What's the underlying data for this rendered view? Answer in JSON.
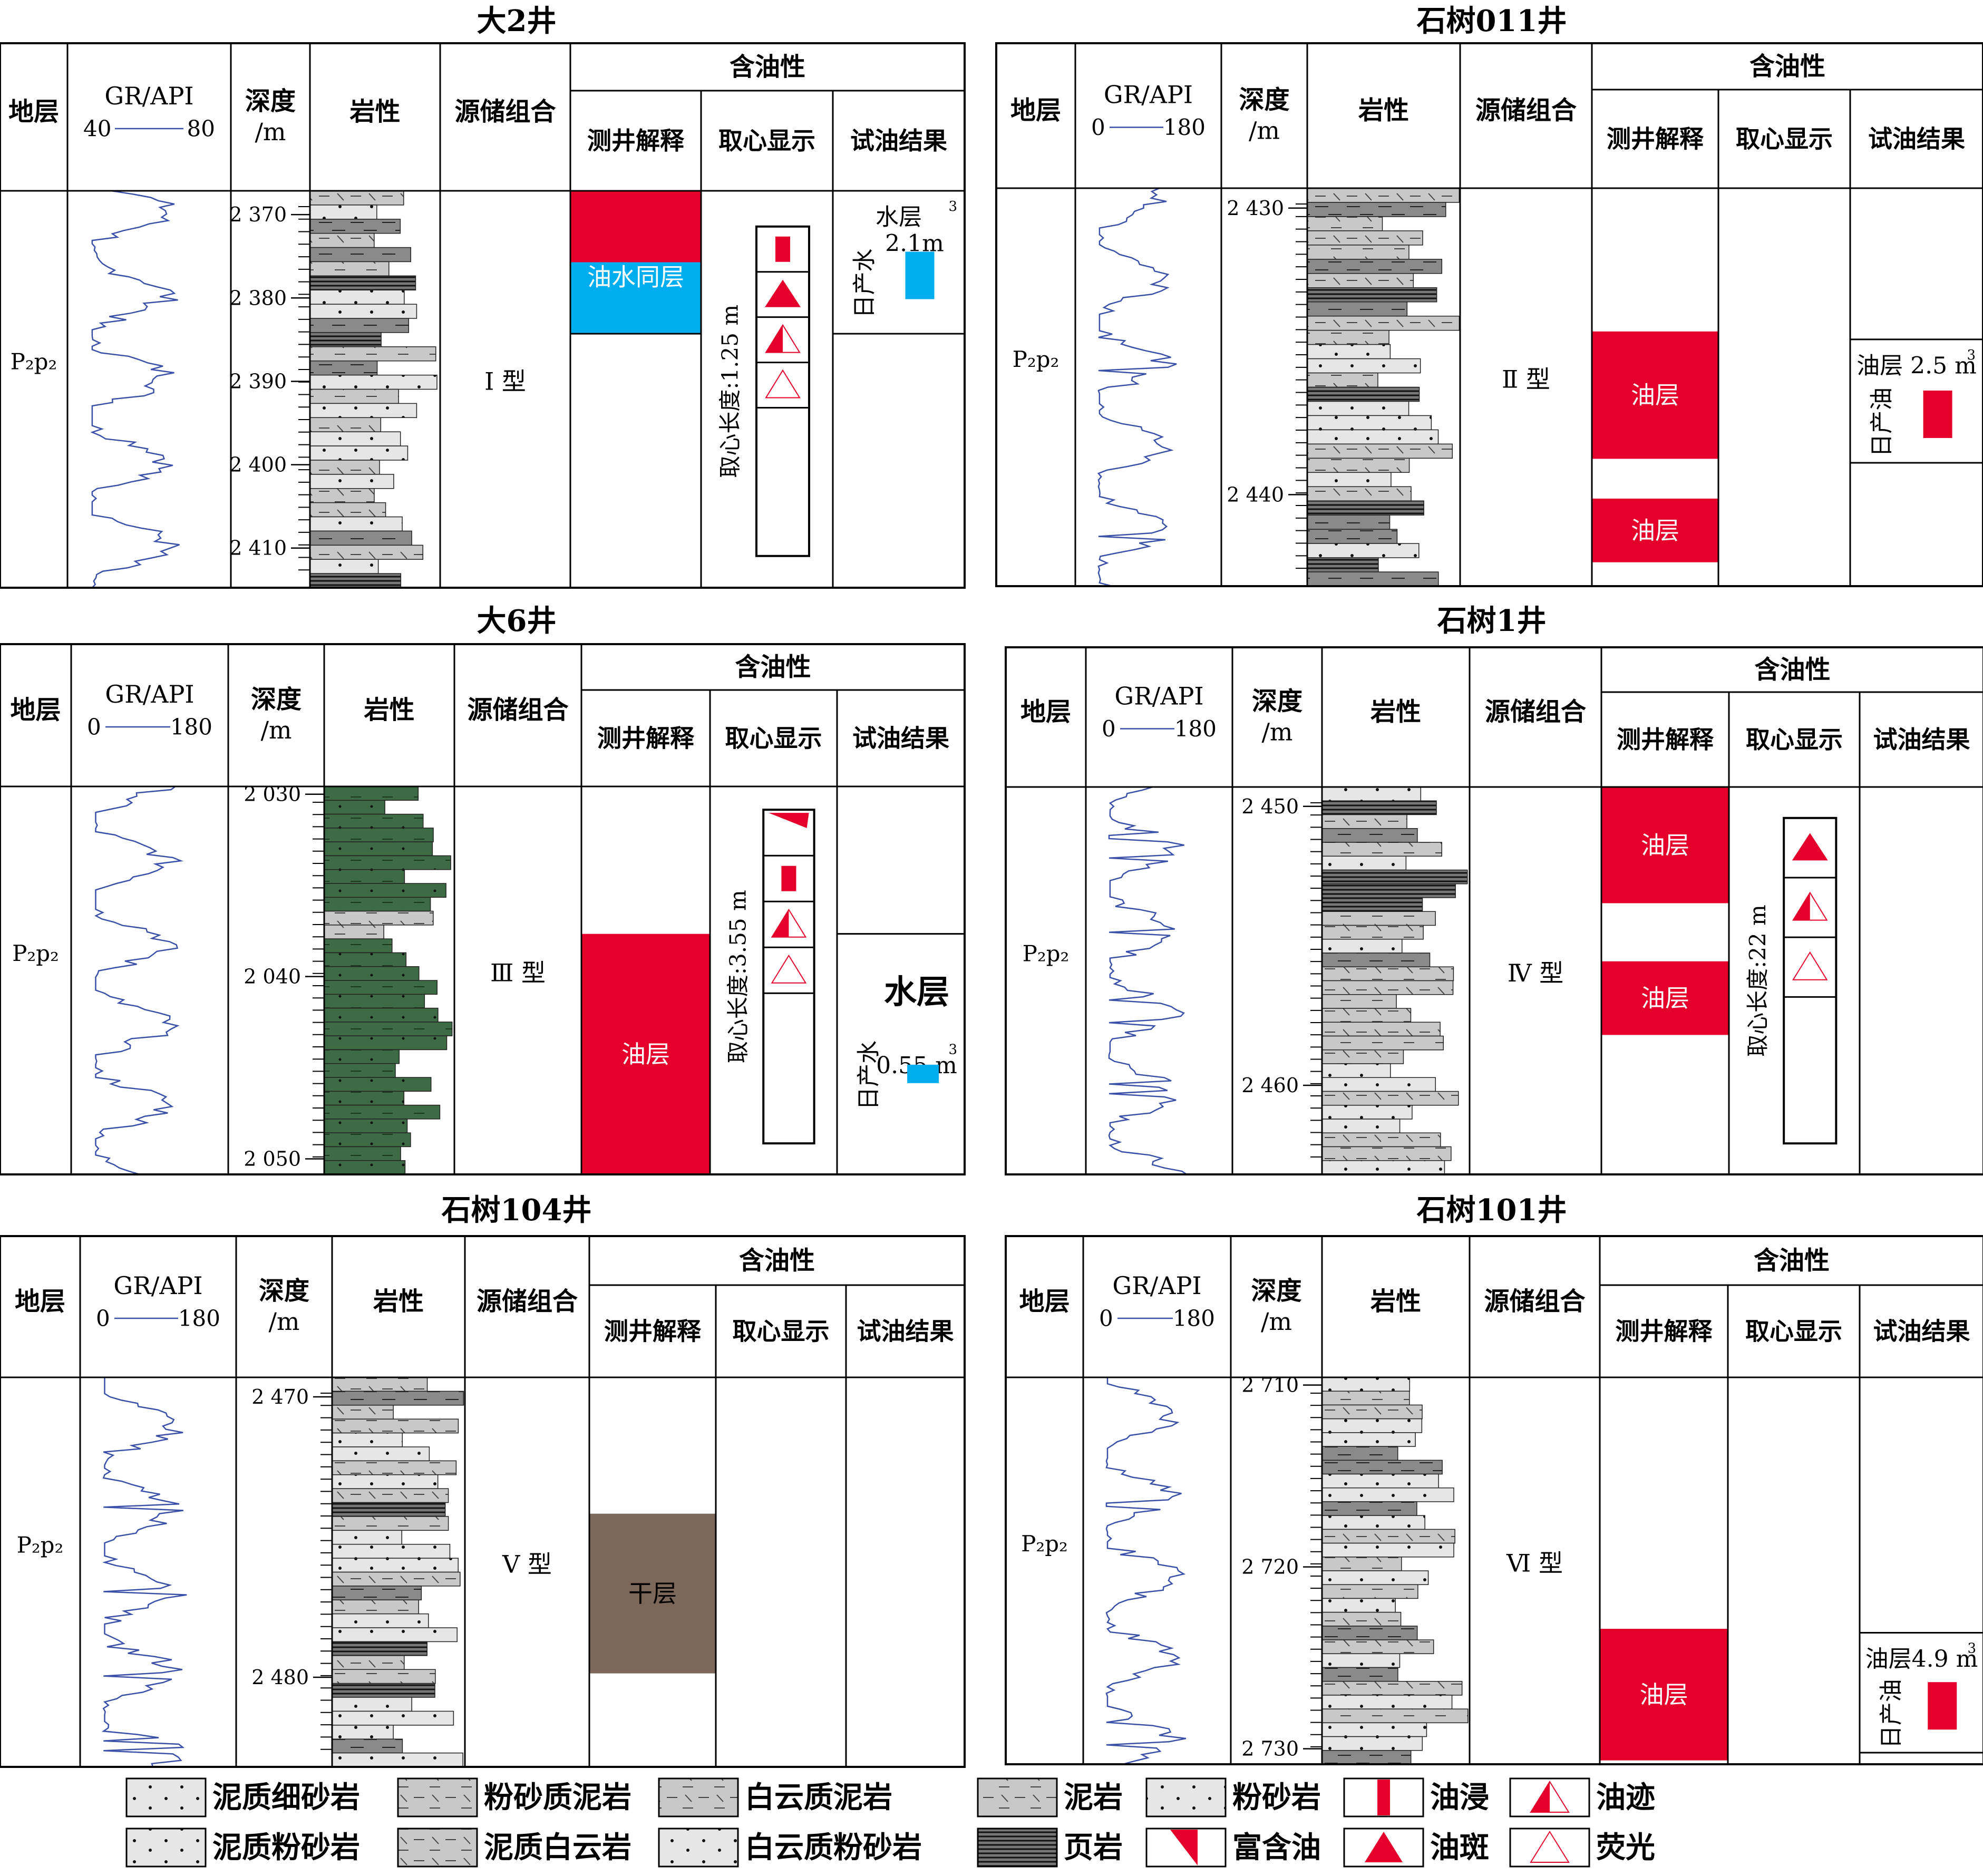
{
  "headers": {
    "formation": "地层",
    "gr_label": "GR/API",
    "depth_label": "深度",
    "depth_unit": "/m",
    "lithology": "岩性",
    "combination": "源储组合",
    "oil_bearing": "含油性",
    "log_interp": "测井解释",
    "core_show": "取心显示",
    "test_result": "试油结果"
  },
  "colors": {
    "oil": "#e4002b",
    "water": "#00aeef",
    "dry": "#7b685a",
    "gr_curve": "#3a4fa8",
    "grey_rock": "#c8c8c8",
    "green_rock": "#3d6b45"
  },
  "wells": [
    {
      "name": "大2井",
      "formation": "P₂p₂",
      "gr_min": "40",
      "gr_max": "80",
      "depth_ticks": [
        "2 370",
        "2 380",
        "2 390",
        "2 400",
        "2 410"
      ],
      "combination": "Ⅰ 型",
      "interp": [
        {
          "label": "",
          "fluid": "oil",
          "top": 0,
          "bottom": 0.18
        },
        {
          "label": "油水同层",
          "fluid": "water",
          "top": 0.18,
          "bottom": 0.36
        }
      ],
      "core": {
        "label": "取心长度:1.25 m",
        "top": 0.09,
        "bottom": 0.92,
        "shows": [
          "油浸",
          "油斑",
          "油迹",
          "荧光"
        ]
      },
      "test": {
        "label": "水层",
        "product": "日产水",
        "amount": "2.1m",
        "unit_sup": "3",
        "fluid": "water",
        "top": 0,
        "bottom": 0.36
      },
      "lith_color": "grey"
    },
    {
      "name": "石树011井",
      "formation": "P₂p₂",
      "gr_min": "0",
      "gr_max": "180",
      "depth_ticks": [
        "2 430",
        "2 440"
      ],
      "combination": "Ⅱ 型",
      "interp": [
        {
          "label": "油层",
          "fluid": "oil",
          "top": 0.36,
          "bottom": 0.68
        },
        {
          "label": "油层",
          "fluid": "oil",
          "top": 0.78,
          "bottom": 0.94
        }
      ],
      "core": null,
      "test": {
        "label": "油层 2.5 m",
        "unit_sup": "3",
        "product": "日产油",
        "amount": "",
        "fluid": "oil",
        "top": 0.38,
        "bottom": 0.69
      },
      "lith_color": "grey"
    },
    {
      "name": "大6井",
      "formation": "P₂p₂",
      "gr_min": "0",
      "gr_max": "180",
      "depth_ticks": [
        "2 030",
        "2 040",
        "2 050"
      ],
      "combination": "Ⅲ 型",
      "interp": [
        {
          "label": "油层",
          "fluid": "oil",
          "top": 0.38,
          "bottom": 1.0
        }
      ],
      "core": {
        "label": "取心长度:3.55 m",
        "top": 0.06,
        "bottom": 0.92,
        "shows": [
          "富含油",
          "油浸",
          "油迹",
          "荧光"
        ]
      },
      "test": {
        "label": "水层",
        "product": "日产水",
        "amount": "0.55 m",
        "unit_sup": "3",
        "fluid": "water",
        "top": 0.38,
        "bottom": 1.0
      },
      "lith_color": "green"
    },
    {
      "name": "石树1井",
      "formation": "P₂p₂",
      "gr_min": "0",
      "gr_max": "180",
      "depth_ticks": [
        "2 450",
        "2 460"
      ],
      "combination": "Ⅳ 型",
      "interp": [
        {
          "label": "油层",
          "fluid": "oil",
          "top": 0,
          "bottom": 0.3
        },
        {
          "label": "油层",
          "fluid": "oil",
          "top": 0.45,
          "bottom": 0.64
        }
      ],
      "core": {
        "label": "取心长度:22 m",
        "top": 0.08,
        "bottom": 0.92,
        "shows": [
          "油斑",
          "油迹",
          "荧光"
        ]
      },
      "test": null,
      "lith_color": "grey"
    },
    {
      "name": "石树104井",
      "formation": "P₂p₂",
      "gr_min": "0",
      "gr_max": "180",
      "depth_ticks": [
        "2 470",
        "2 480"
      ],
      "combination": "Ⅴ 型",
      "interp": [
        {
          "label": "干层",
          "fluid": "dry",
          "top": 0.35,
          "bottom": 0.76
        }
      ],
      "core": null,
      "test": null,
      "lith_color": "grey"
    },
    {
      "name": "石树101井",
      "formation": "P₂p₂",
      "gr_min": "0",
      "gr_max": "180",
      "depth_ticks": [
        "2 710",
        "2 720",
        "2 730"
      ],
      "combination": "Ⅵ 型",
      "interp": [
        {
          "label": "油层",
          "fluid": "oil",
          "top": 0.65,
          "bottom": 0.99
        }
      ],
      "core": null,
      "test": {
        "label": "油层4.9 m",
        "unit_sup": "3",
        "product": "日产油",
        "amount": "",
        "fluid": "oil",
        "top": 0.66,
        "bottom": 0.97
      },
      "lith_color": "grey"
    }
  ],
  "legend": [
    {
      "pattern": "muddy-fine-sand",
      "label": "泥质细砂岩"
    },
    {
      "pattern": "silty-mud",
      "label": "粉砂质泥岩"
    },
    {
      "pattern": "dolomitic-mud",
      "label": "白云质泥岩"
    },
    {
      "pattern": "mudstone",
      "label": "泥岩"
    },
    {
      "pattern": "siltstone",
      "label": "粉砂岩"
    },
    {
      "pattern": "oil-immersed",
      "label": "油浸"
    },
    {
      "pattern": "oil-trace",
      "label": "油迹"
    },
    {
      "pattern": "muddy-siltstone",
      "label": "泥质粉砂岩"
    },
    {
      "pattern": "muddy-dolomite",
      "label": "泥质白云岩"
    },
    {
      "pattern": "dolomitic-siltstone",
      "label": "白云质粉砂岩"
    },
    {
      "pattern": "shale",
      "label": "页岩"
    },
    {
      "pattern": "oil-rich",
      "label": "富含油"
    },
    {
      "pattern": "oil-spot",
      "label": "油斑"
    },
    {
      "pattern": "fluorescence",
      "label": "荧光"
    }
  ]
}
